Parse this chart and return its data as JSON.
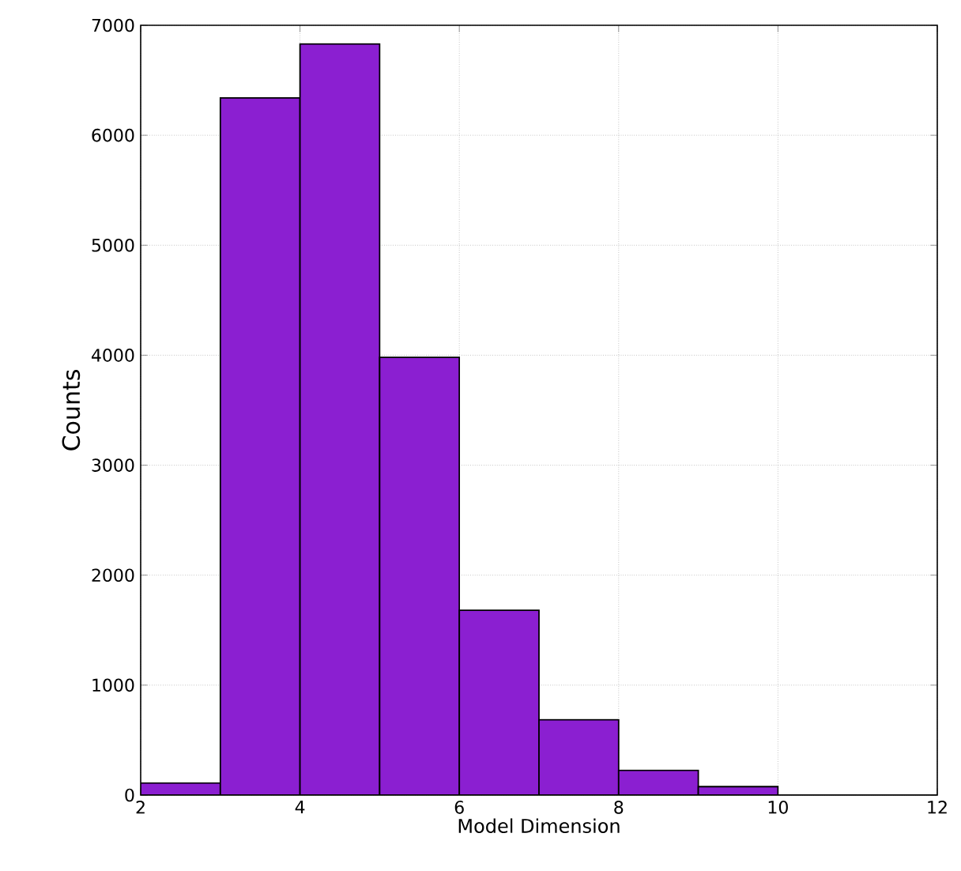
{
  "chart_data": {
    "type": "histogram",
    "xlabel": "Model Dimension",
    "ylabel": "Counts",
    "bins": [
      2,
      3,
      4,
      5,
      6,
      7,
      8,
      9,
      10,
      11,
      12
    ],
    "values": [
      110,
      6340,
      6830,
      3980,
      1680,
      685,
      225,
      77,
      0,
      0
    ],
    "color": "#8b1fd1",
    "xlim": [
      2,
      12
    ],
    "xticks": [
      2,
      4,
      6,
      8,
      10,
      12
    ],
    "ylim": [
      0,
      7000
    ],
    "yticks": [
      0,
      1000,
      2000,
      3000,
      4000,
      5000,
      6000,
      7000
    ],
    "grid": true
  }
}
